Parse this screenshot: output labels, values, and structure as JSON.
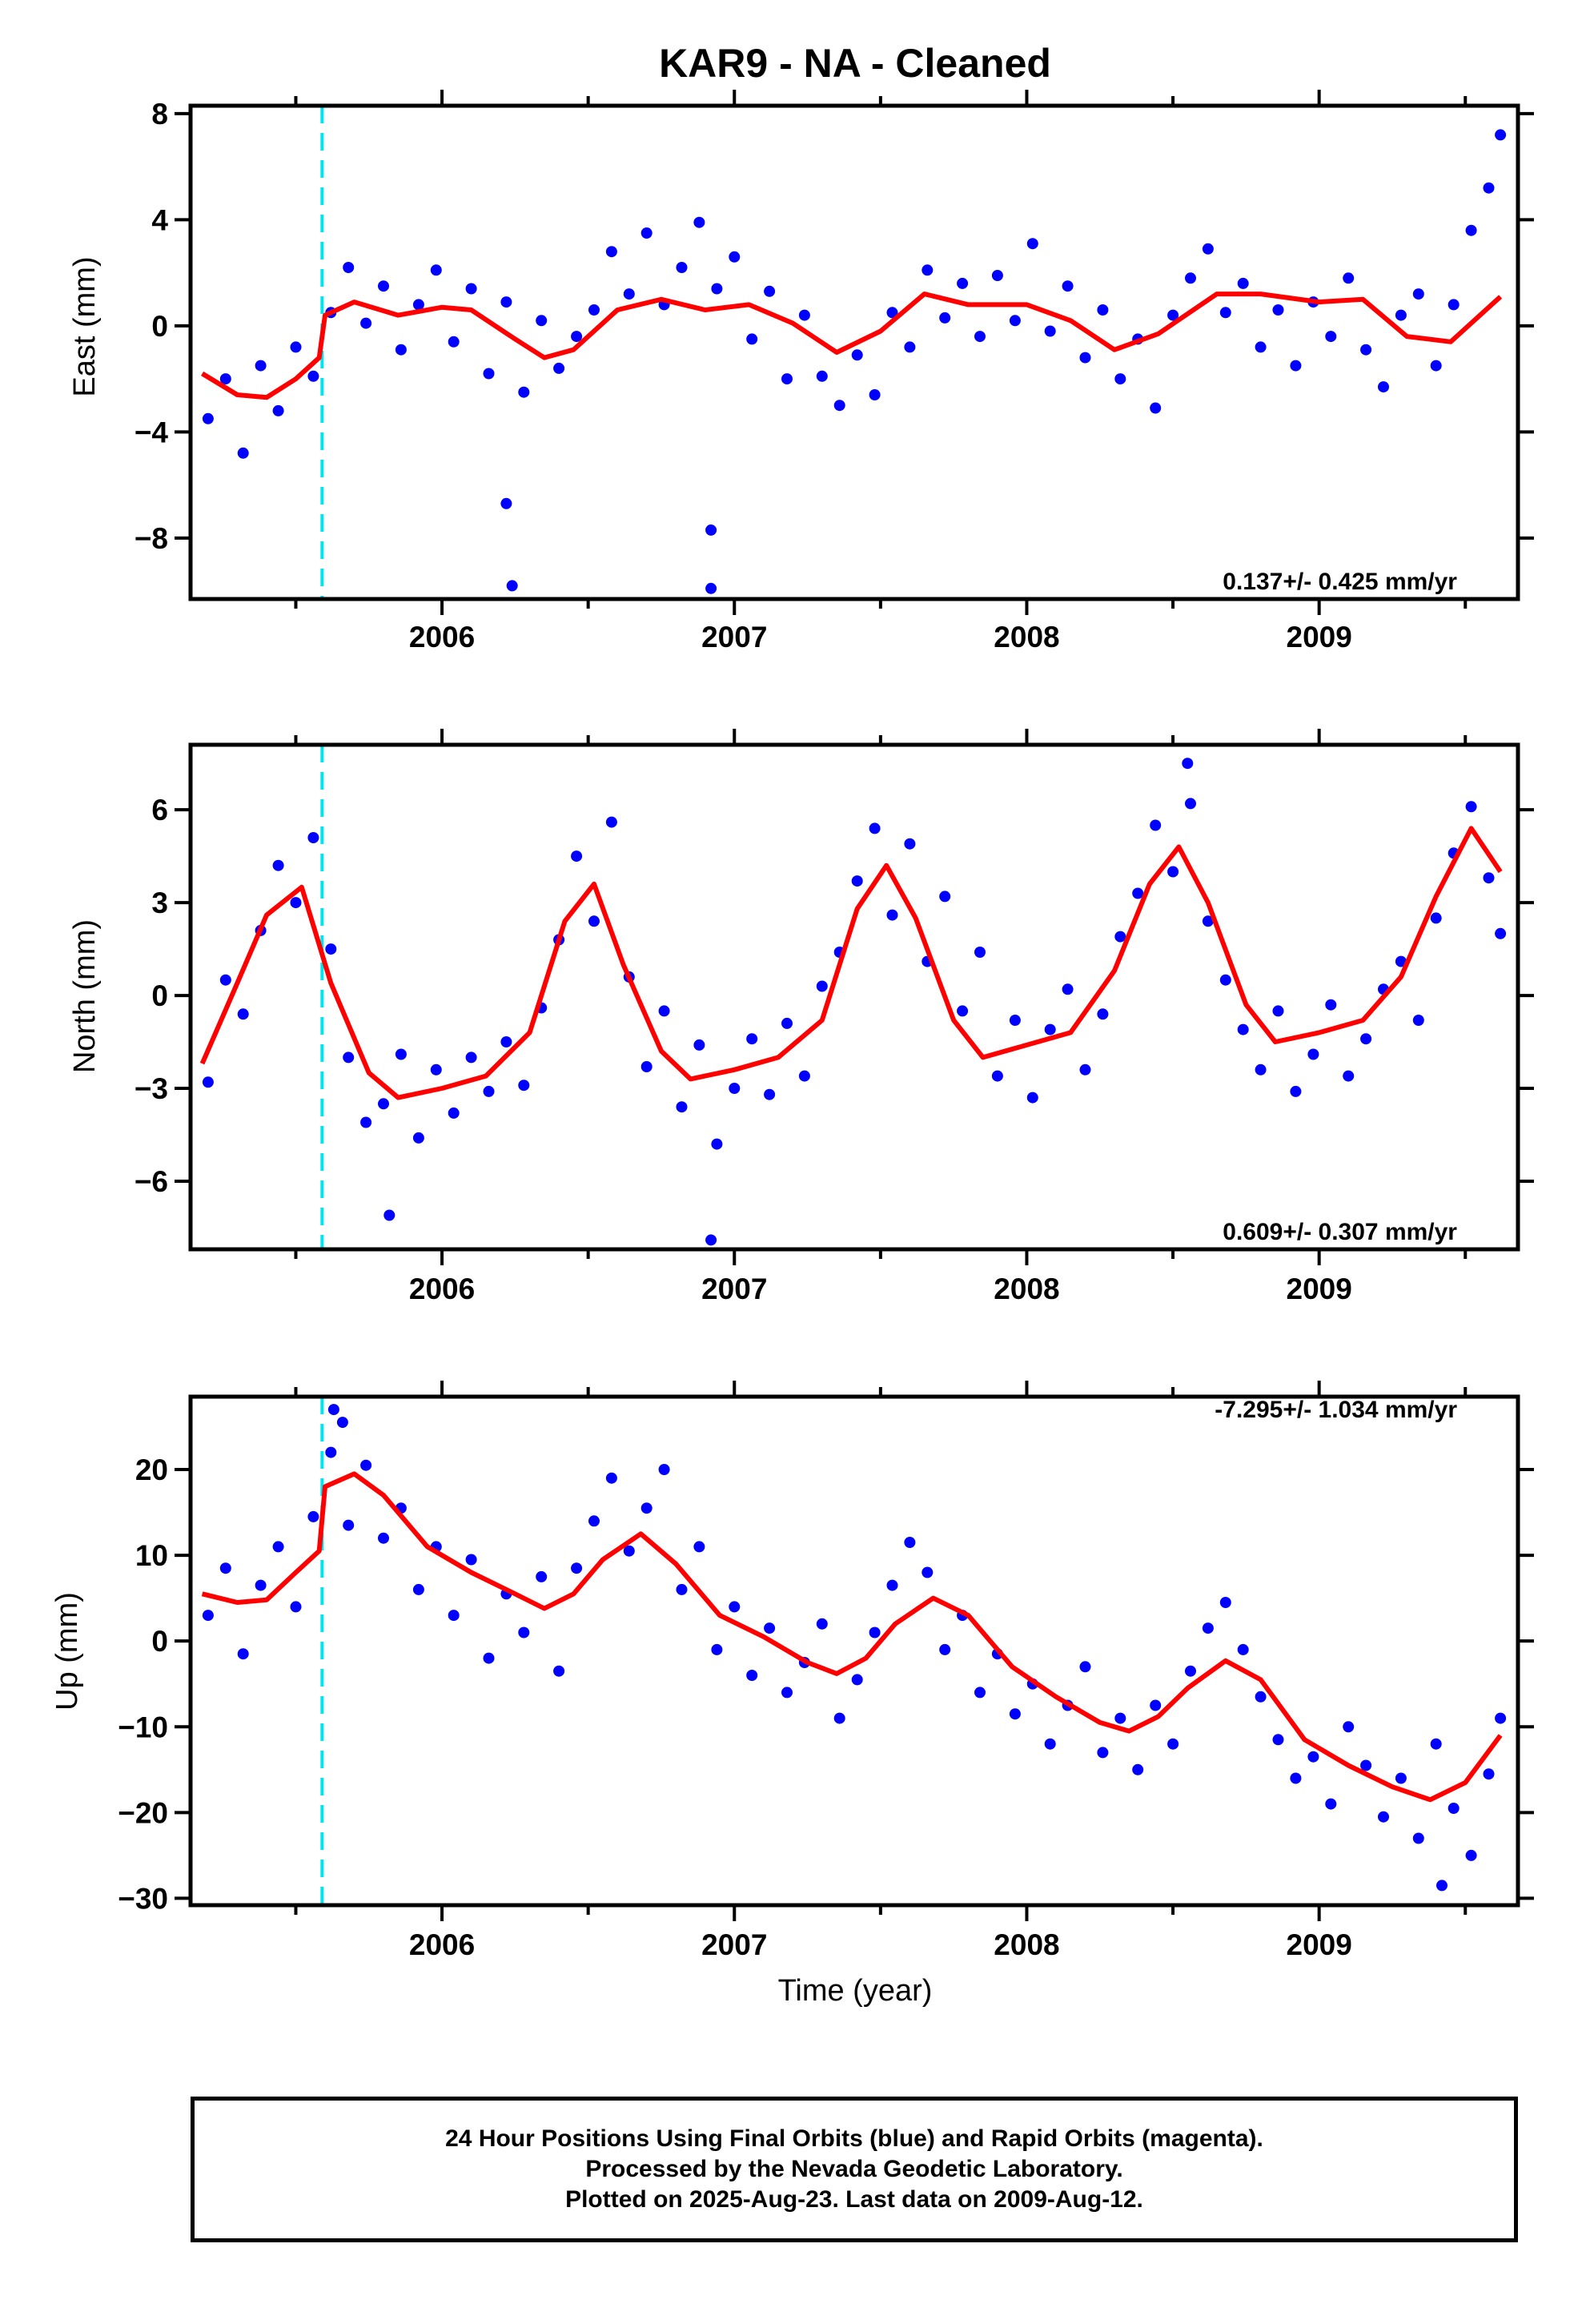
{
  "title": "KAR9  - NA - Cleaned",
  "x_axis_label": "Time (year)",
  "footer": {
    "line1": "24 Hour Positions Using Final Orbits (blue) and Rapid Orbits (magenta).",
    "line2": "Processed by the Nevada Geodetic Laboratory.",
    "line3": "Plotted on 2025-Aug-23. Last data on 2009-Aug-12."
  },
  "chart_data": [
    {
      "type": "scatter",
      "name": "East",
      "ylabel": "East (mm)",
      "rate_text": "0.137+/- 0.425 mm/yr",
      "xlim": [
        2005.14,
        2009.68
      ],
      "ylim": [
        -10.3,
        8.3
      ],
      "yticks": [
        -8,
        -4,
        0,
        4,
        8
      ],
      "ytick_labels": [
        "−8",
        "−4",
        "0",
        "4",
        "8"
      ],
      "xticks": [
        2006,
        2007,
        2008,
        2009
      ],
      "xtick_labels": [
        "2006",
        "2007",
        "2008",
        "2009"
      ],
      "dot_color": "#0000ff",
      "model_color": "#ff0000",
      "offset_line_x": 2005.59,
      "offset_line_color": "#00e5ee",
      "model": {
        "x": [
          2005.18,
          2005.3,
          2005.4,
          2005.5,
          2005.58,
          2005.6,
          2005.7,
          2005.85,
          2006.0,
          2006.1,
          2006.25,
          2006.35,
          2006.45,
          2006.6,
          2006.75,
          2006.9,
          2007.05,
          2007.2,
          2007.35,
          2007.5,
          2007.65,
          2007.8,
          2008.0,
          2008.15,
          2008.3,
          2008.45,
          2008.65,
          2008.8,
          2009.0,
          2009.15,
          2009.3,
          2009.45,
          2009.62
        ],
        "y": [
          -1.8,
          -2.6,
          -2.7,
          -2.0,
          -1.2,
          0.4,
          0.9,
          0.4,
          0.7,
          0.6,
          -0.5,
          -1.2,
          -0.9,
          0.6,
          1.0,
          0.6,
          0.8,
          0.1,
          -1.0,
          -0.2,
          1.2,
          0.8,
          0.8,
          0.2,
          -0.9,
          -0.3,
          1.2,
          1.2,
          0.9,
          1.0,
          -0.4,
          -0.6,
          1.1
        ]
      },
      "points": {
        "x": [
          2005.2,
          2005.26,
          2005.32,
          2005.38,
          2005.44,
          2005.5,
          2005.56,
          2005.62,
          2005.68,
          2005.74,
          2005.8,
          2005.86,
          2005.92,
          2005.98,
          2006.04,
          2006.1,
          2006.16,
          2006.22,
          2006.28,
          2006.34,
          2006.4,
          2006.46,
          2006.52,
          2006.58,
          2006.64,
          2006.7,
          2006.76,
          2006.82,
          2006.88,
          2006.94,
          2007.0,
          2007.06,
          2007.12,
          2007.18,
          2007.24,
          2007.3,
          2007.36,
          2007.42,
          2007.48,
          2007.54,
          2007.6,
          2007.66,
          2007.72,
          2007.78,
          2007.84,
          2007.9,
          2007.96,
          2008.02,
          2008.08,
          2008.14,
          2008.2,
          2008.26,
          2008.32,
          2008.38,
          2008.44,
          2008.5,
          2008.56,
          2008.62,
          2008.68,
          2008.74,
          2008.8,
          2008.86,
          2008.92,
          2008.98,
          2009.04,
          2009.1,
          2009.16,
          2009.22,
          2009.28,
          2009.34,
          2009.4,
          2009.46,
          2009.52,
          2009.58,
          2009.62,
          2006.22,
          2006.92,
          2006.92,
          2006.24
        ],
        "y": [
          -3.5,
          -2.0,
          -4.8,
          -1.5,
          -3.2,
          -0.8,
          -1.9,
          0.5,
          2.2,
          0.1,
          1.5,
          -0.9,
          0.8,
          2.1,
          -0.6,
          1.4,
          -1.8,
          0.9,
          -2.5,
          0.2,
          -1.6,
          -0.4,
          0.6,
          2.8,
          1.2,
          3.5,
          0.8,
          2.2,
          3.9,
          1.4,
          2.6,
          -0.5,
          1.3,
          -2.0,
          0.4,
          -1.9,
          -3.0,
          -1.1,
          -2.6,
          0.5,
          -0.8,
          2.1,
          0.3,
          1.6,
          -0.4,
          1.9,
          0.2,
          3.1,
          -0.2,
          1.5,
          -1.2,
          0.6,
          -2.0,
          -0.5,
          -3.1,
          0.4,
          1.8,
          2.9,
          0.5,
          1.6,
          -0.8,
          0.6,
          -1.5,
          0.9,
          -0.4,
          1.8,
          -0.9,
          -2.3,
          0.4,
          1.2,
          -1.5,
          0.8,
          3.6,
          5.2,
          7.2,
          -6.7,
          -7.7,
          -9.9,
          -9.8
        ]
      }
    },
    {
      "type": "scatter",
      "name": "North",
      "ylabel": "North (mm)",
      "rate_text": "0.609+/- 0.307 mm/yr",
      "xlim": [
        2005.14,
        2009.68
      ],
      "ylim": [
        -8.2,
        8.1
      ],
      "yticks": [
        -6,
        -3,
        0,
        3,
        6
      ],
      "ytick_labels": [
        "−6",
        "−3",
        "0",
        "3",
        "6"
      ],
      "xticks": [
        2006,
        2007,
        2008,
        2009
      ],
      "xtick_labels": [
        "2006",
        "2007",
        "2008",
        "2009"
      ],
      "dot_color": "#0000ff",
      "model_color": "#ff0000",
      "offset_line_x": 2005.59,
      "offset_line_color": "#00e5ee",
      "model": {
        "x": [
          2005.18,
          2005.3,
          2005.4,
          2005.52,
          2005.62,
          2005.75,
          2005.85,
          2006.0,
          2006.15,
          2006.3,
          2006.42,
          2006.52,
          2006.62,
          2006.75,
          2006.85,
          2007.0,
          2007.15,
          2007.3,
          2007.42,
          2007.52,
          2007.62,
          2007.75,
          2007.85,
          2008.0,
          2008.15,
          2008.3,
          2008.42,
          2008.52,
          2008.62,
          2008.75,
          2008.85,
          2009.0,
          2009.15,
          2009.28,
          2009.4,
          2009.52,
          2009.62
        ],
        "y": [
          -2.2,
          0.4,
          2.6,
          3.5,
          0.4,
          -2.5,
          -3.3,
          -3.0,
          -2.6,
          -1.2,
          2.4,
          3.6,
          1.0,
          -1.8,
          -2.7,
          -2.4,
          -2.0,
          -0.8,
          2.8,
          4.2,
          2.5,
          -0.8,
          -2.0,
          -1.6,
          -1.2,
          0.8,
          3.6,
          4.8,
          3.0,
          -0.3,
          -1.5,
          -1.2,
          -0.8,
          0.6,
          3.2,
          5.4,
          4.0
        ]
      },
      "points": {
        "x": [
          2005.2,
          2005.26,
          2005.32,
          2005.38,
          2005.44,
          2005.5,
          2005.56,
          2005.62,
          2005.68,
          2005.74,
          2005.8,
          2005.86,
          2005.92,
          2005.98,
          2006.04,
          2006.1,
          2006.16,
          2006.22,
          2006.28,
          2006.34,
          2006.4,
          2006.46,
          2006.52,
          2006.58,
          2006.64,
          2006.7,
          2006.76,
          2006.82,
          2006.88,
          2006.94,
          2007.0,
          2007.06,
          2007.12,
          2007.18,
          2007.24,
          2007.3,
          2007.36,
          2007.42,
          2007.48,
          2007.54,
          2007.6,
          2007.66,
          2007.72,
          2007.78,
          2007.84,
          2007.9,
          2007.96,
          2008.02,
          2008.08,
          2008.14,
          2008.2,
          2008.26,
          2008.32,
          2008.38,
          2008.44,
          2008.5,
          2008.56,
          2008.62,
          2008.68,
          2008.74,
          2008.8,
          2008.86,
          2008.92,
          2008.98,
          2009.04,
          2009.1,
          2009.16,
          2009.22,
          2009.28,
          2009.34,
          2009.4,
          2009.46,
          2009.52,
          2009.58,
          2009.62,
          2005.82,
          2006.92,
          2008.55
        ],
        "y": [
          -2.8,
          0.5,
          -0.6,
          2.1,
          4.2,
          3.0,
          5.1,
          1.5,
          -2.0,
          -4.1,
          -3.5,
          -1.9,
          -4.6,
          -2.4,
          -3.8,
          -2.0,
          -3.1,
          -1.5,
          -2.9,
          -0.4,
          1.8,
          4.5,
          2.4,
          5.6,
          0.6,
          -2.3,
          -0.5,
          -3.6,
          -1.6,
          -4.8,
          -3.0,
          -1.4,
          -3.2,
          -0.9,
          -2.6,
          0.3,
          1.4,
          3.7,
          5.4,
          2.6,
          4.9,
          1.1,
          3.2,
          -0.5,
          1.4,
          -2.6,
          -0.8,
          -3.3,
          -1.1,
          0.2,
          -2.4,
          -0.6,
          1.9,
          3.3,
          5.5,
          4.0,
          6.2,
          2.4,
          0.5,
          -1.1,
          -2.4,
          -0.5,
          -3.1,
          -1.9,
          -0.3,
          -2.6,
          -1.4,
          0.2,
          1.1,
          -0.8,
          2.5,
          4.6,
          6.1,
          3.8,
          2.0,
          -7.1,
          -7.9,
          7.5
        ]
      }
    },
    {
      "type": "scatter",
      "name": "Up",
      "ylabel": "Up (mm)",
      "rate_text": "-7.295+/- 1.034 mm/yr",
      "xlim": [
        2005.14,
        2009.68
      ],
      "ylim": [
        -30.8,
        28.5
      ],
      "yticks": [
        -30,
        -20,
        -10,
        0,
        10,
        20
      ],
      "ytick_labels": [
        "−30",
        "−20",
        "−10",
        "0",
        "10",
        "20"
      ],
      "xticks": [
        2006,
        2007,
        2008,
        2009
      ],
      "xtick_labels": [
        "2006",
        "2007",
        "2008",
        "2009"
      ],
      "dot_color": "#0000ff",
      "model_color": "#ff0000",
      "offset_line_x": 2005.59,
      "offset_line_color": "#00e5ee",
      "model": {
        "x": [
          2005.18,
          2005.3,
          2005.4,
          2005.5,
          2005.58,
          2005.6,
          2005.7,
          2005.8,
          2005.95,
          2006.1,
          2006.25,
          2006.35,
          2006.45,
          2006.55,
          2006.68,
          2006.8,
          2006.95,
          2007.1,
          2007.25,
          2007.35,
          2007.45,
          2007.55,
          2007.68,
          2007.8,
          2007.95,
          2008.1,
          2008.25,
          2008.35,
          2008.45,
          2008.55,
          2008.68,
          2008.8,
          2008.95,
          2009.1,
          2009.25,
          2009.38,
          2009.5,
          2009.62
        ],
        "y": [
          5.5,
          4.5,
          4.8,
          8.0,
          10.5,
          18.0,
          19.5,
          17.0,
          11.0,
          8.0,
          5.5,
          3.8,
          5.5,
          9.5,
          12.5,
          9.0,
          3.0,
          0.5,
          -2.5,
          -3.8,
          -2.0,
          2.0,
          5.0,
          3.0,
          -3.0,
          -6.5,
          -9.5,
          -10.5,
          -8.8,
          -5.5,
          -2.3,
          -4.5,
          -11.5,
          -14.5,
          -17.0,
          -18.5,
          -16.5,
          -11.0
        ]
      },
      "points": {
        "x": [
          2005.2,
          2005.26,
          2005.32,
          2005.38,
          2005.44,
          2005.5,
          2005.56,
          2005.62,
          2005.68,
          2005.74,
          2005.8,
          2005.86,
          2005.92,
          2005.98,
          2006.04,
          2006.1,
          2006.16,
          2006.22,
          2006.28,
          2006.34,
          2006.4,
          2006.46,
          2006.52,
          2006.58,
          2006.64,
          2006.7,
          2006.76,
          2006.82,
          2006.88,
          2006.94,
          2007.0,
          2007.06,
          2007.12,
          2007.18,
          2007.24,
          2007.3,
          2007.36,
          2007.42,
          2007.48,
          2007.54,
          2007.6,
          2007.66,
          2007.72,
          2007.78,
          2007.84,
          2007.9,
          2007.96,
          2008.02,
          2008.08,
          2008.14,
          2008.2,
          2008.26,
          2008.32,
          2008.38,
          2008.44,
          2008.5,
          2008.56,
          2008.62,
          2008.68,
          2008.74,
          2008.8,
          2008.86,
          2008.92,
          2008.98,
          2009.04,
          2009.1,
          2009.16,
          2009.22,
          2009.28,
          2009.34,
          2009.4,
          2009.46,
          2009.52,
          2009.58,
          2009.62,
          2005.63,
          2005.66,
          2009.42
        ],
        "y": [
          3.0,
          8.5,
          -1.5,
          6.5,
          11.0,
          4.0,
          14.5,
          22.0,
          13.5,
          20.5,
          12.0,
          15.5,
          6.0,
          11.0,
          3.0,
          9.5,
          -2.0,
          5.5,
          1.0,
          7.5,
          -3.5,
          8.5,
          14.0,
          19.0,
          10.5,
          15.5,
          20.0,
          6.0,
          11.0,
          -1.0,
          4.0,
          -4.0,
          1.5,
          -6.0,
          -2.5,
          2.0,
          -9.0,
          -4.5,
          1.0,
          6.5,
          11.5,
          8.0,
          -1.0,
          3.0,
          -6.0,
          -1.5,
          -8.5,
          -5.0,
          -12.0,
          -7.5,
          -3.0,
          -13.0,
          -9.0,
          -15.0,
          -7.5,
          -12.0,
          -3.5,
          1.5,
          4.5,
          -1.0,
          -6.5,
          -11.5,
          -16.0,
          -13.5,
          -19.0,
          -10.0,
          -14.5,
          -20.5,
          -16.0,
          -23.0,
          -12.0,
          -19.5,
          -25.0,
          -15.5,
          -9.0,
          27.0,
          25.5,
          -28.5
        ]
      }
    }
  ]
}
